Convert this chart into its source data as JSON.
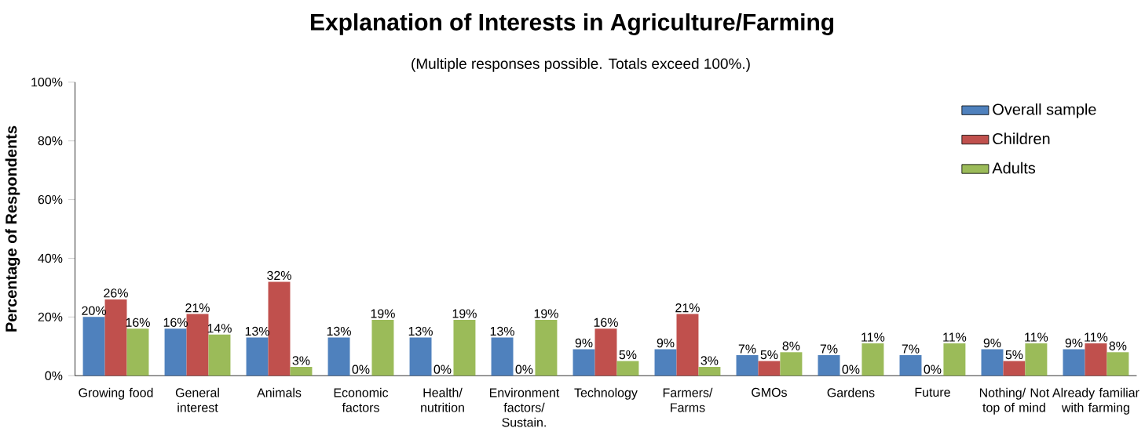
{
  "chart_data": {
    "type": "bar",
    "title": "Explanation of Interests in Agriculture/Farming",
    "subtitle": "(Multiple responses possible. Totals exceed 100%.)",
    "ylabel": "Percentage of Respondents",
    "categories": [
      "Growing food",
      "General interest",
      "Animals",
      "Economic factors",
      "Health/ nutrition",
      "Environment factors/ Sustain.",
      "Technology",
      "Farmers/ Farms",
      "GMOs",
      "Gardens",
      "Future",
      "Nothing/ Not top of mind",
      "Already familiar with farming"
    ],
    "series": [
      {
        "name": "Overall sample",
        "color": "#4f81bd",
        "values": [
          20,
          16,
          13,
          13,
          13,
          13,
          9,
          9,
          7,
          7,
          7,
          9,
          9
        ],
        "value_labels": [
          "20%",
          "16%",
          "13%",
          "13%",
          "13%",
          "13%",
          "9%",
          "9%",
          "7%",
          "7%",
          "7%",
          "9%",
          "9%"
        ]
      },
      {
        "name": "Children",
        "color": "#c0504d",
        "values": [
          26,
          21,
          32,
          0,
          0,
          0,
          16,
          21,
          5,
          0,
          0,
          5,
          11
        ],
        "value_labels": [
          "26%",
          "21%",
          "32%",
          "0%",
          "0%",
          "0%",
          "16%",
          "21%",
          "5%",
          "0%",
          "0%",
          "5%",
          "11%"
        ]
      },
      {
        "name": "Adults",
        "color": "#9bbb59",
        "values": [
          16,
          14,
          3,
          19,
          19,
          19,
          5,
          3,
          8,
          11,
          11,
          11,
          8
        ],
        "value_labels": [
          "16%",
          "14%",
          "3%",
          "19%",
          "19%",
          "19%",
          "5%",
          "3%",
          "8%",
          "11%",
          "11%",
          "11%",
          "8%"
        ]
      }
    ],
    "ylim": [
      0,
      100
    ],
    "yticks": [
      {
        "value": 0,
        "label": "0%"
      },
      {
        "value": 20,
        "label": "20%"
      },
      {
        "value": 40,
        "label": "40%"
      },
      {
        "value": 60,
        "label": "60%"
      },
      {
        "value": 80,
        "label": "80%"
      },
      {
        "value": 100,
        "label": "100%"
      }
    ],
    "grid": false,
    "legend": "top right"
  }
}
